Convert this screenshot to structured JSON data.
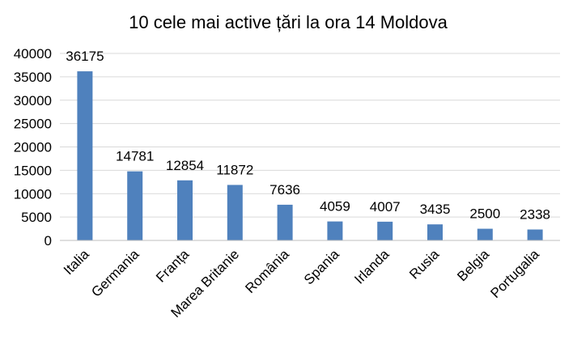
{
  "chart_data": {
    "type": "bar",
    "title": "10 cele mai active țări la ora 14 Moldova",
    "xlabel": "",
    "ylabel": "",
    "categories": [
      "Italia",
      "Germania",
      "Franța",
      "Marea Britanie",
      "România",
      "Spania",
      "Irlanda",
      "Rusia",
      "Belgia",
      "Portugalia"
    ],
    "values": [
      36175,
      14781,
      12854,
      11872,
      7636,
      4059,
      4007,
      3435,
      2500,
      2338
    ],
    "ylim": [
      0,
      40000
    ],
    "yticks": [
      0,
      5000,
      10000,
      15000,
      20000,
      25000,
      30000,
      35000,
      40000
    ],
    "grid": true,
    "legend": "none",
    "bar_color": "#4f81bd"
  }
}
